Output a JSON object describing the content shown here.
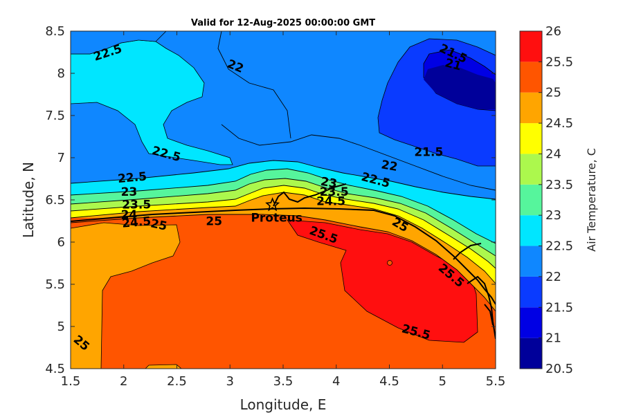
{
  "chart_data": {
    "type": "heatmap",
    "title": "Valid for 12-Aug-2025 00:00:00 GMT",
    "xlabel": "Longitude, E",
    "ylabel": "Latitude, N",
    "xlim": [
      1.5,
      5.5
    ],
    "ylim": [
      4.5,
      8.5
    ],
    "xticks": [
      "1.5",
      "2",
      "2.5",
      "3",
      "3.5",
      "4",
      "4.5",
      "5",
      "5.5"
    ],
    "yticks": [
      "4.5",
      "5",
      "5.5",
      "6",
      "6.5",
      "7",
      "7.5",
      "8",
      "8.5"
    ],
    "colorbar": {
      "label": "Air Temperature, C",
      "levels": [
        20.5,
        21,
        21.5,
        22,
        22.5,
        23,
        23.5,
        24,
        24.5,
        25,
        25.5,
        26
      ],
      "tick_labels": [
        "20.5",
        "21",
        "21.5",
        "22",
        "22.5",
        "23",
        "23.5",
        "24",
        "24.5",
        "25",
        "25.5",
        "26"
      ],
      "colors": [
        "#00009a",
        "#0000e4",
        "#0a3bff",
        "#0f87ff",
        "#00e6ff",
        "#56f59c",
        "#acf84d",
        "#ffff00",
        "#ffa500",
        "#ff5500",
        "#ff0f0f",
        "#b30000"
      ]
    },
    "contour_labels": [
      {
        "text": "22.5",
        "lon": 1.85,
        "lat": 8.24,
        "rot": -18
      },
      {
        "text": "22",
        "lon": 3.05,
        "lat": 8.08,
        "rot": 22
      },
      {
        "text": "21.5",
        "lon": 5.1,
        "lat": 8.23,
        "rot": 25
      },
      {
        "text": "21",
        "lon": 5.1,
        "lat": 8.1,
        "rot": 15
      },
      {
        "text": "22.5",
        "lon": 2.4,
        "lat": 7.04,
        "rot": 15
      },
      {
        "text": "21.5",
        "lon": 4.87,
        "lat": 7.06,
        "rot": 0
      },
      {
        "text": "22",
        "lon": 4.5,
        "lat": 6.9,
        "rot": 10
      },
      {
        "text": "22.5",
        "lon": 4.37,
        "lat": 6.73,
        "rot": 15
      },
      {
        "text": "22.5",
        "lon": 2.08,
        "lat": 6.76,
        "rot": -5
      },
      {
        "text": "23",
        "lon": 2.05,
        "lat": 6.59,
        "rot": 0
      },
      {
        "text": "23.5",
        "lon": 2.12,
        "lat": 6.44,
        "rot": 0
      },
      {
        "text": "24",
        "lon": 2.05,
        "lat": 6.32,
        "rot": 0
      },
      {
        "text": "24.5",
        "lon": 2.12,
        "lat": 6.23,
        "rot": -5
      },
      {
        "text": "25",
        "lon": 2.33,
        "lat": 6.2,
        "rot": 12
      },
      {
        "text": "25",
        "lon": 2.85,
        "lat": 6.24,
        "rot": 0
      },
      {
        "text": "23",
        "lon": 3.93,
        "lat": 6.7,
        "rot": 10
      },
      {
        "text": "23.5",
        "lon": 3.98,
        "lat": 6.59,
        "rot": 0
      },
      {
        "text": "24.5",
        "lon": 3.95,
        "lat": 6.48,
        "rot": 0
      },
      {
        "text": "25.5",
        "lon": 3.88,
        "lat": 6.08,
        "rot": 20
      },
      {
        "text": "25",
        "lon": 4.6,
        "lat": 6.2,
        "rot": 30
      },
      {
        "text": "25.5",
        "lon": 5.08,
        "lat": 5.6,
        "rot": 40
      },
      {
        "text": "25.5",
        "lon": 4.75,
        "lat": 4.93,
        "rot": 15
      },
      {
        "text": "25",
        "lon": 1.6,
        "lat": 4.8,
        "rot": 40
      }
    ],
    "site": {
      "name": "Proteus",
      "lon": 3.4,
      "lat": 6.44
    }
  }
}
